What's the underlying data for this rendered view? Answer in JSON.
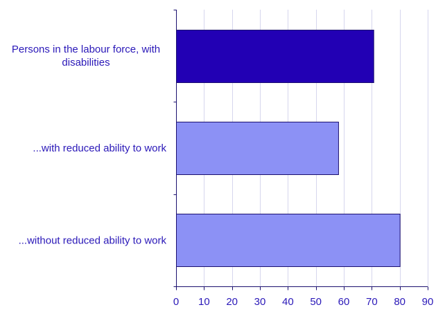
{
  "chart_data": {
    "type": "bar",
    "orientation": "horizontal",
    "categories": [
      [
        "Persons in the labour force, with",
        "disabilities"
      ],
      [
        "...with reduced ability to work"
      ],
      [
        "...without reduced ability to work"
      ]
    ],
    "values": [
      70.6,
      58.0,
      80.0
    ],
    "bar_colors": [
      "#2200b4",
      "#8c91f5",
      "#8c91f5"
    ],
    "xlim": [
      0,
      90
    ],
    "xticks": [
      0,
      10,
      20,
      30,
      40,
      50,
      60,
      70,
      80,
      90
    ],
    "title": "",
    "xlabel": "",
    "ylabel": "",
    "grid": true,
    "legend": "none"
  }
}
